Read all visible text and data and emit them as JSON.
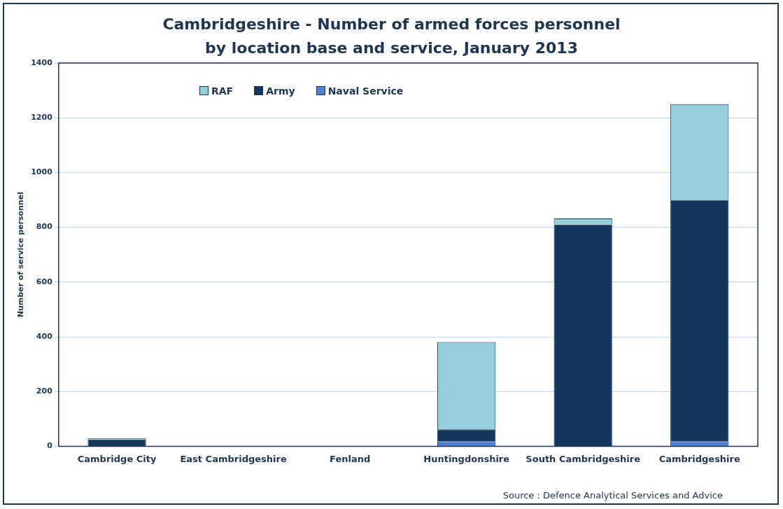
{
  "chart_data": {
    "type": "bar",
    "title": "Cambridgeshire - Number of armed forces personnel\nby location base and service, January 2013",
    "ylabel": "Number of service personnel",
    "categories": [
      "Cambridge City",
      "East Cambridgeshire",
      "Fenland",
      "Huntingdonshire",
      "South Cambridgeshire",
      "Cambridgeshire"
    ],
    "series": [
      {
        "name": "Naval Service",
        "color": "#4f81d0",
        "values": [
          0,
          0,
          0,
          18,
          0,
          18
        ]
      },
      {
        "name": "Army",
        "color": "#14355c",
        "values": [
          25,
          0,
          0,
          44,
          810,
          882
        ]
      },
      {
        "name": "RAF",
        "color": "#95cfdc",
        "values": [
          5,
          0,
          0,
          319,
          22,
          350
        ]
      }
    ],
    "stacked": true,
    "ylim": [
      0,
      1400
    ],
    "yticks": [
      0,
      200,
      400,
      600,
      800,
      1000,
      1200,
      1400
    ],
    "grid": "y",
    "legend": "top left",
    "annotations": [
      "Source : Defence Analytical Services and Advice"
    ]
  }
}
